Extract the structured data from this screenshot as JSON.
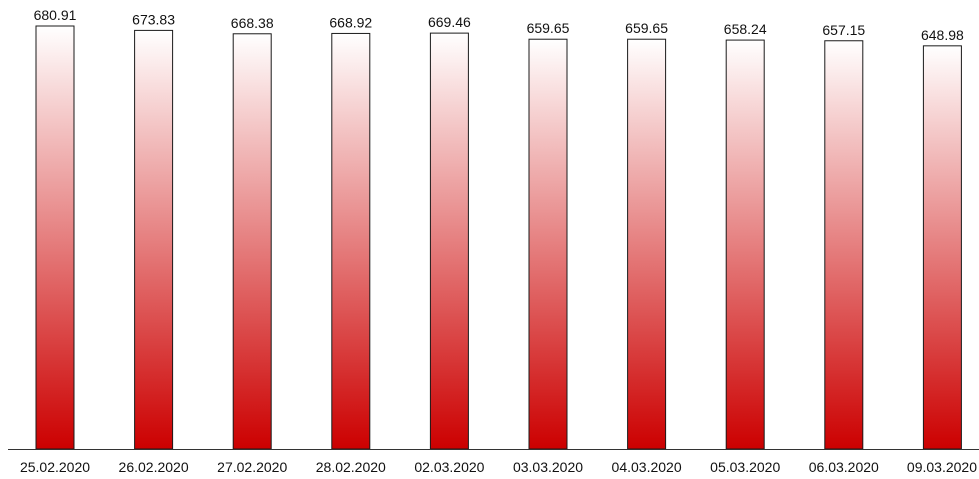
{
  "chart_data": {
    "type": "bar",
    "categories": [
      "25.02.2020",
      "26.02.2020",
      "27.02.2020",
      "28.02.2020",
      "02.03.2020",
      "03.03.2020",
      "04.03.2020",
      "05.03.2020",
      "06.03.2020",
      "09.03.2020"
    ],
    "values": [
      680.91,
      673.83,
      668.38,
      668.92,
      669.46,
      659.65,
      659.65,
      658.24,
      657.15,
      648.98
    ],
    "value_labels": [
      "680.91",
      "673.83",
      "668.38",
      "668.92",
      "669.46",
      "659.65",
      "659.65",
      "658.24",
      "657.15",
      "648.98"
    ],
    "title": "",
    "xlabel": "",
    "ylabel": "",
    "ylim": [
      0,
      680.91
    ],
    "grid": false,
    "legend": "none",
    "colors": {
      "bar_bottom": "#cc0000",
      "bar_top": "#ffffff",
      "bar_outline": "#1a1a1a"
    }
  }
}
